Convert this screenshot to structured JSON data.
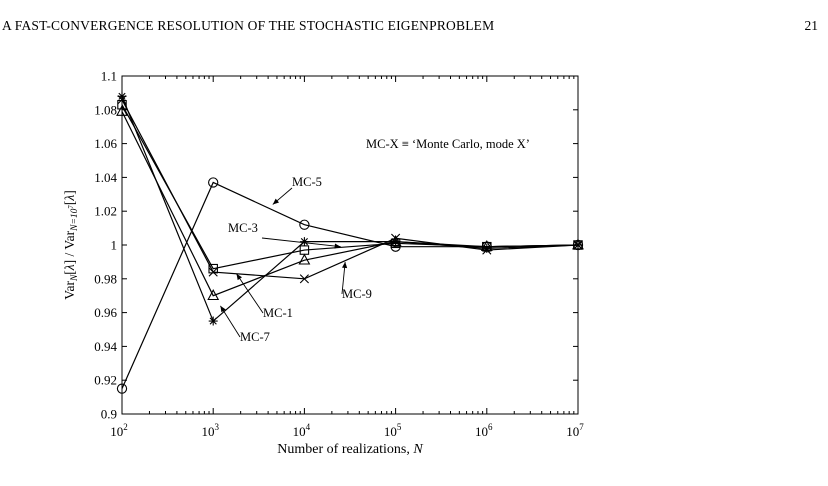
{
  "header": {
    "running_title": "A FAST-CONVERGENCE RESOLUTION OF THE STOCHASTIC EIGENPROBLEM",
    "page_number": "21"
  },
  "chart_data": {
    "type": "line",
    "x_scale": "log",
    "xlim": [
      100,
      10000000
    ],
    "ylim": [
      0.9,
      1.1
    ],
    "x_tick_labels": [
      {
        "base": "10",
        "exp": "2"
      },
      {
        "base": "10",
        "exp": "3"
      },
      {
        "base": "10",
        "exp": "4"
      },
      {
        "base": "10",
        "exp": "5"
      },
      {
        "base": "10",
        "exp": "6"
      },
      {
        "base": "10",
        "exp": "7"
      }
    ],
    "y_ticks": [
      "0.9",
      "0.92",
      "0.94",
      "0.96",
      "0.98",
      "1",
      "1.02",
      "1.04",
      "1.06",
      "1.08",
      "1.1"
    ],
    "xlabel": "Number of realizations, N",
    "ylabel": "Var_N[λ] / Var_{N=10^7}[λ]",
    "annotation": "MC-X ≡ ‘Monte Carlo, mode X’",
    "grid": false,
    "x": [
      100,
      1000,
      10000,
      100000,
      1000000,
      10000000
    ],
    "series": [
      {
        "name": "MC-5",
        "marker": "circle",
        "values": [
          0.915,
          1.037,
          1.012,
          0.999,
          0.999,
          1.0
        ]
      },
      {
        "name": "MC-3",
        "marker": "square",
        "values": [
          1.083,
          0.986,
          0.997,
          1.001,
          0.999,
          1.0
        ]
      },
      {
        "name": "MC-1",
        "marker": "triangle",
        "values": [
          1.079,
          0.97,
          0.991,
          1.002,
          0.999,
          1.0
        ]
      },
      {
        "name": "MC-7",
        "marker": "star",
        "values": [
          1.088,
          0.955,
          1.002,
          1.002,
          0.998,
          1.0
        ]
      },
      {
        "name": "MC-9",
        "marker": "cross",
        "values": [
          1.086,
          0.984,
          0.98,
          1.004,
          0.997,
          1.0
        ]
      }
    ],
    "series_labels": [
      {
        "text": "MC-5",
        "series": "MC-5"
      },
      {
        "text": "MC-3",
        "series": "MC-3"
      },
      {
        "text": "MC-1",
        "series": "MC-1"
      },
      {
        "text": "MC-7",
        "series": "MC-7"
      },
      {
        "text": "MC-9",
        "series": "MC-9"
      }
    ]
  }
}
